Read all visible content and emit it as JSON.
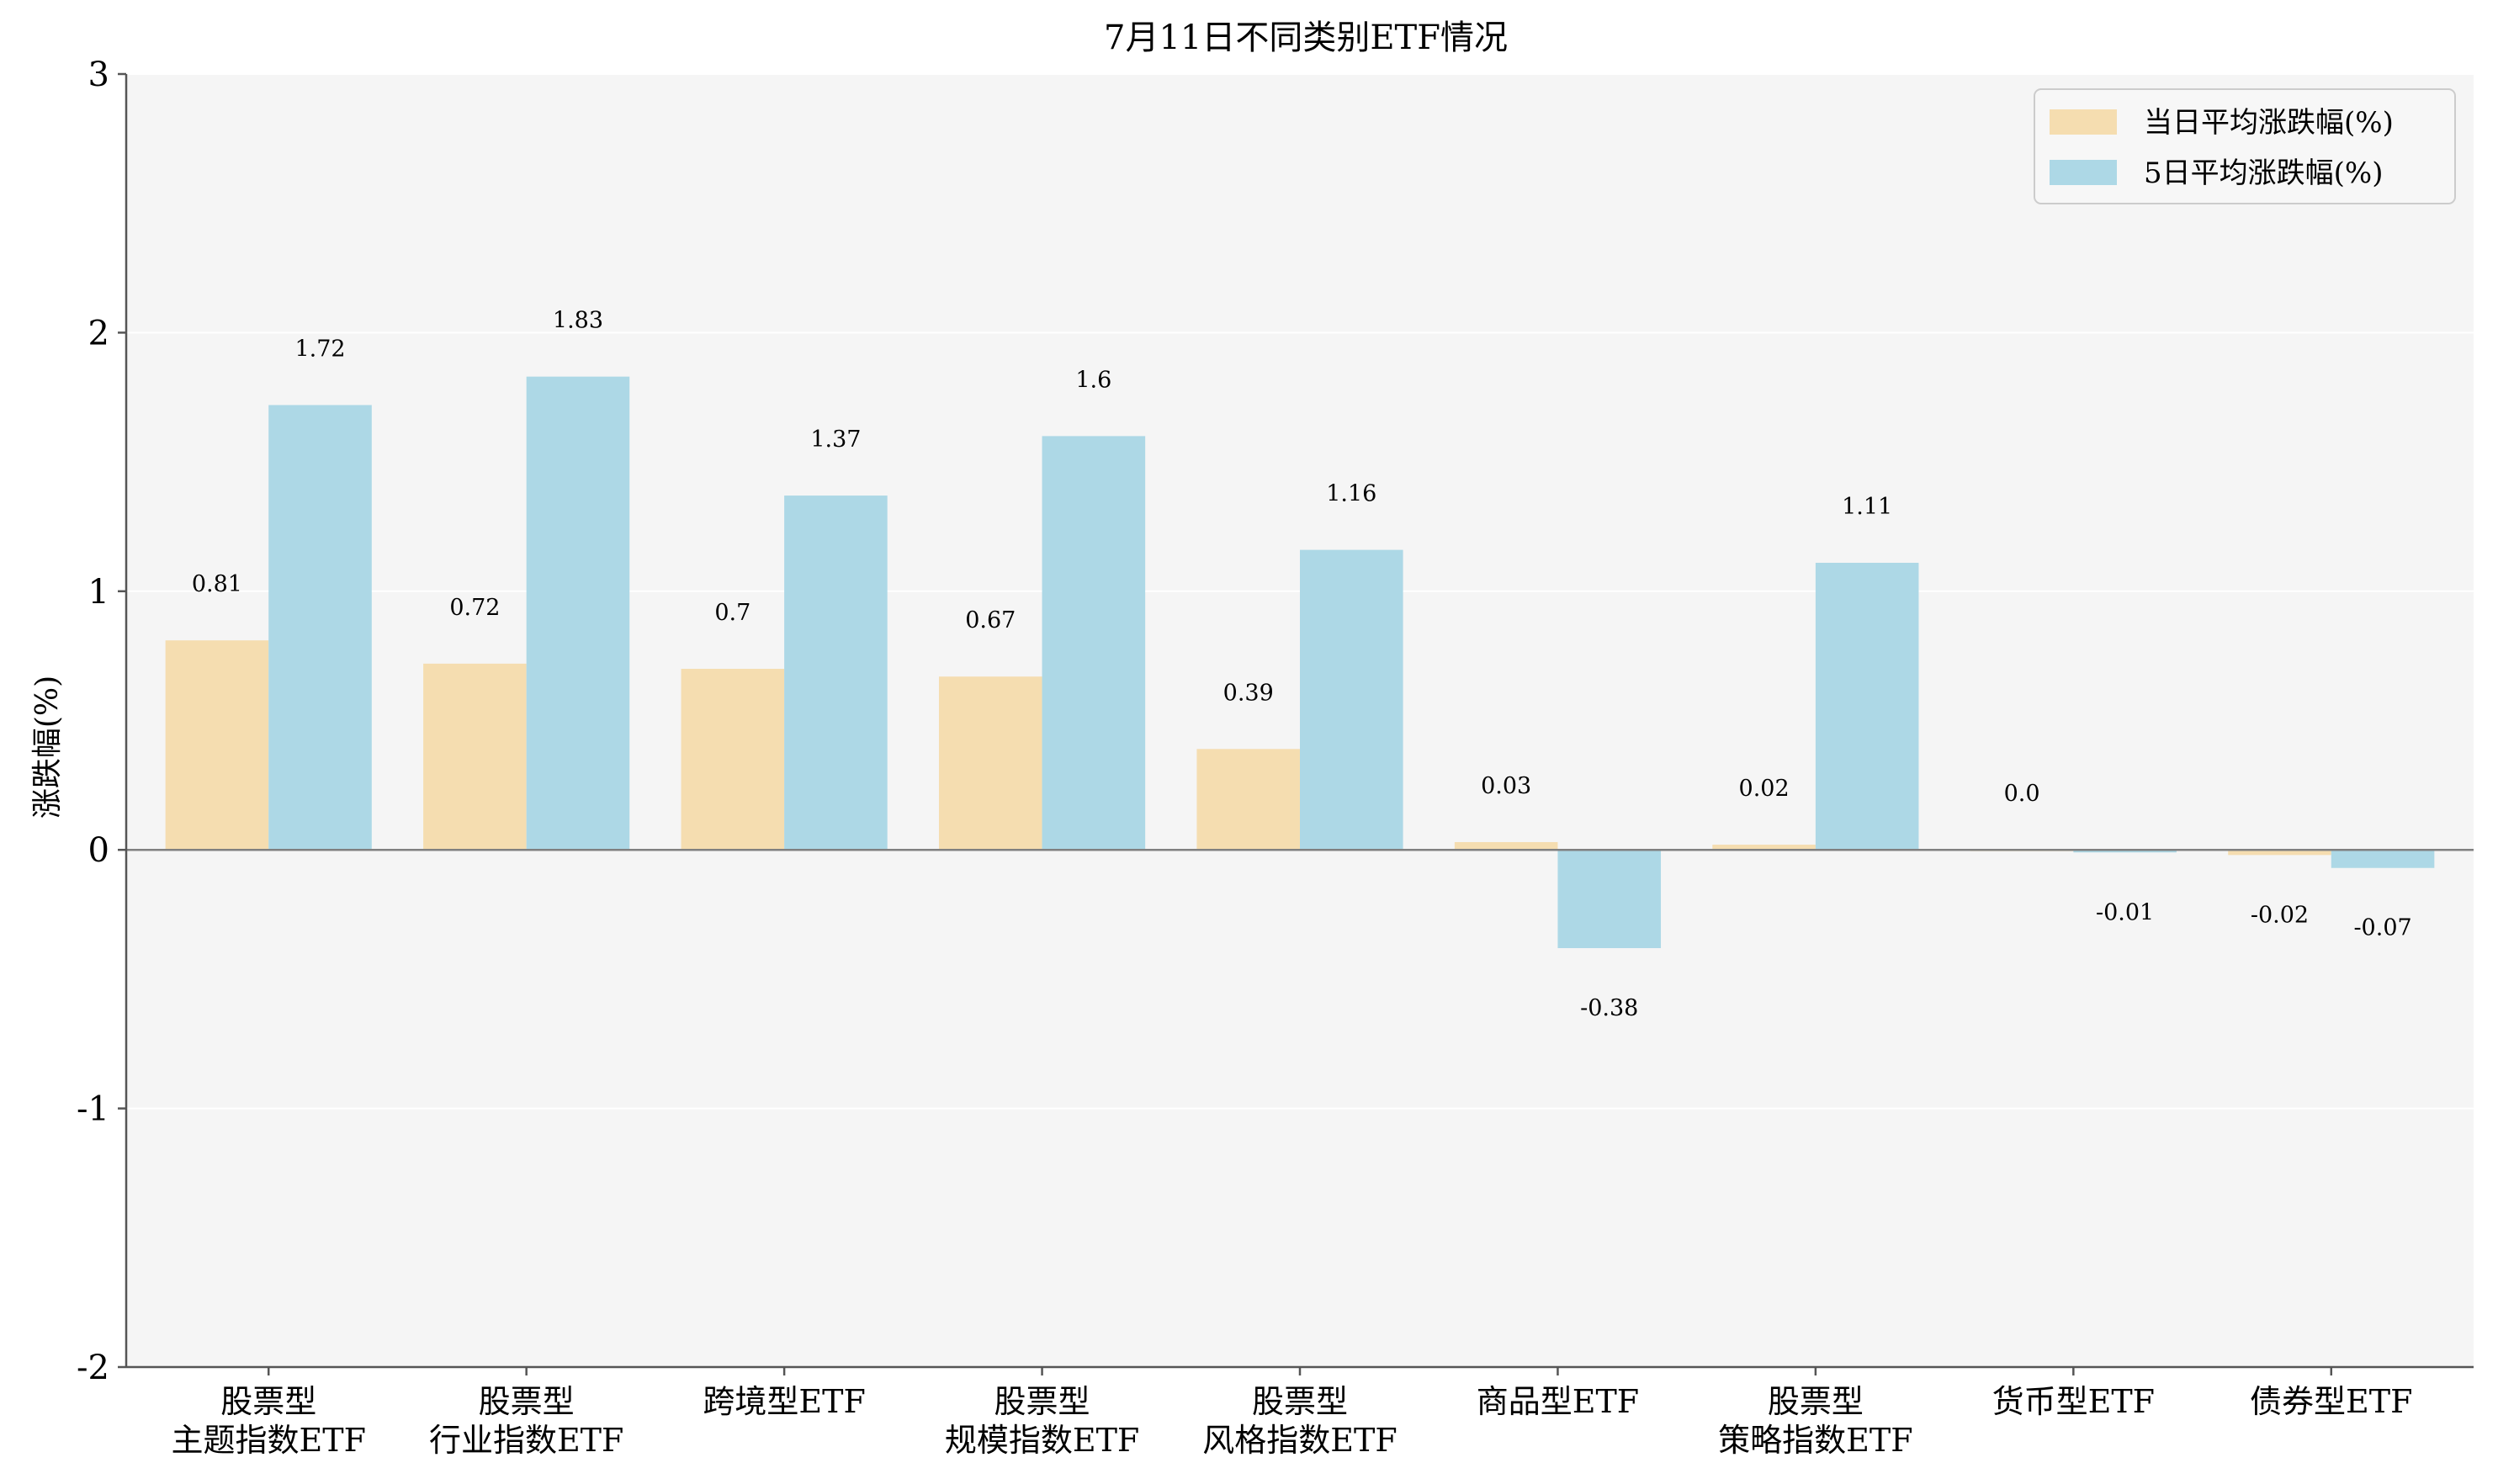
{
  "chart_data": {
    "type": "bar",
    "title": "7月11日不同类别ETF情况",
    "xlabel": "",
    "ylabel": "涨跌幅(%)",
    "ylim": [
      -2,
      3
    ],
    "yticks": [
      -2,
      -1,
      0,
      1,
      2,
      3
    ],
    "grid": true,
    "legend_position": "top-right",
    "categories": [
      [
        "股票型",
        "主题指数ETF"
      ],
      [
        "股票型",
        "行业指数ETF"
      ],
      [
        "跨境型ETF"
      ],
      [
        "股票型",
        "规模指数ETF"
      ],
      [
        "股票型",
        "风格指数ETF"
      ],
      [
        "商品型ETF"
      ],
      [
        "股票型",
        "策略指数ETF"
      ],
      [
        "货币型ETF"
      ],
      [
        "债券型ETF"
      ]
    ],
    "series": [
      {
        "name": "当日平均涨跌幅(%)",
        "color": "#f5ddb0",
        "values": [
          0.81,
          0.72,
          0.7,
          0.67,
          0.39,
          0.03,
          0.02,
          0.0,
          -0.02
        ],
        "labels": [
          "0.81",
          "0.72",
          "0.7",
          "0.67",
          "0.39",
          "0.03",
          "0.02",
          "0.0",
          "-0.02"
        ]
      },
      {
        "name": "5日平均涨跌幅(%)",
        "color": "#add8e6",
        "values": [
          1.72,
          1.83,
          1.37,
          1.6,
          1.16,
          -0.38,
          1.11,
          -0.01,
          -0.07
        ],
        "labels": [
          "1.72",
          "1.83",
          "1.37",
          "1.6",
          "1.16",
          "-0.38",
          "1.11",
          "-0.01",
          "-0.07"
        ]
      }
    ]
  },
  "colors": {
    "plot_background": "#f5f5f5",
    "axis": "#555555",
    "zero_line": "#808080"
  }
}
